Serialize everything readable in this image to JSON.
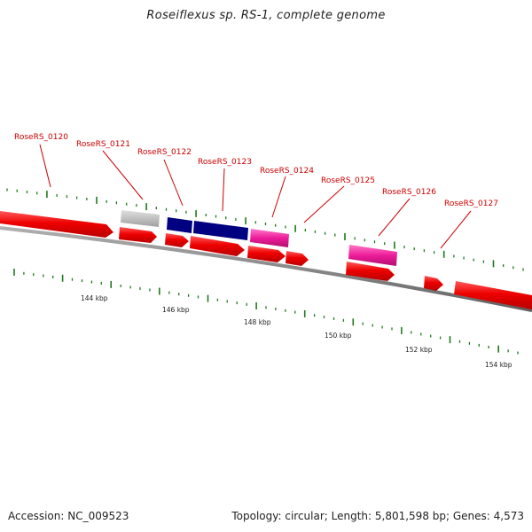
{
  "title": "Roseiflexus sp. RS-1, complete genome",
  "footer": {
    "accession": "Accession: NC_009523",
    "summary": "Topology: circular; Length: 5,801,598 bp; Genes: 4,573"
  },
  "colors": {
    "cds": "#ee0000",
    "gray_feature": "#b8b8b8",
    "navy_feature": "#000080",
    "pink_feature": "#ee1c9a",
    "tick": "#1e7a1e",
    "backbone": "#808080",
    "label": "#cc0000"
  },
  "kbp_labels": [
    "144 kbp",
    "146 kbp",
    "148 kbp",
    "150 kbp",
    "152 kbp",
    "154 kbp"
  ],
  "gene_labels": [
    "RoseRS_0120",
    "RoseRS_0121",
    "RoseRS_0122",
    "RoseRS_0123",
    "RoseRS_0124",
    "RoseRS_0125",
    "RoseRS_0126",
    "RoseRS_0127"
  ]
}
